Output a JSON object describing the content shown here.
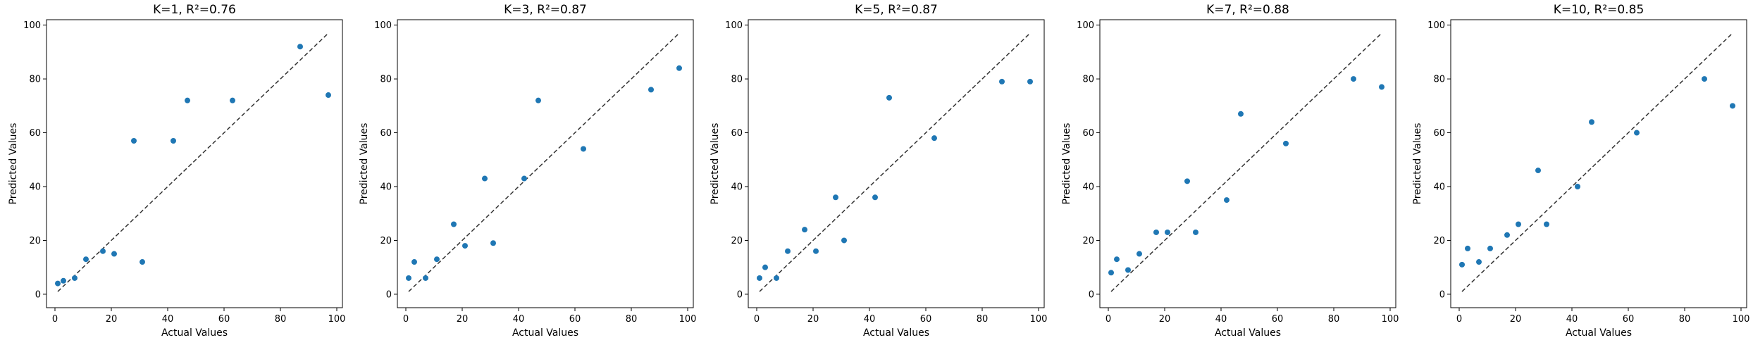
{
  "chart_data": [
    {
      "type": "scatter",
      "title": "K=1, R²=0.76",
      "xlabel": "Actual Values",
      "ylabel": "Predicted Values",
      "xlim": [
        -3,
        102
      ],
      "ylim": [
        -5,
        102
      ],
      "xticks": [
        "0",
        "20",
        "40",
        "60",
        "80",
        "100"
      ],
      "yticks": [
        "0",
        "20",
        "40",
        "60",
        "80",
        "100"
      ],
      "reference_line": [
        [
          1,
          1
        ],
        [
          97,
          97
        ]
      ],
      "point_color": "#1f77b4",
      "x": [
        1,
        3,
        7,
        11,
        17,
        21,
        28,
        31,
        42,
        47,
        63,
        87,
        97
      ],
      "y": [
        4,
        5,
        6,
        13,
        16,
        15,
        57,
        12,
        57,
        72,
        72,
        92,
        74
      ]
    },
    {
      "type": "scatter",
      "title": "K=3, R²=0.87",
      "xlabel": "Actual Values",
      "ylabel": "Predicted Values",
      "xlim": [
        -3,
        102
      ],
      "ylim": [
        -5,
        102
      ],
      "xticks": [
        "0",
        "20",
        "40",
        "60",
        "80",
        "100"
      ],
      "yticks": [
        "0",
        "20",
        "40",
        "60",
        "80",
        "100"
      ],
      "reference_line": [
        [
          1,
          1
        ],
        [
          97,
          97
        ]
      ],
      "point_color": "#1f77b4",
      "x": [
        1,
        3,
        7,
        11,
        17,
        21,
        28,
        31,
        42,
        47,
        63,
        87,
        97
      ],
      "y": [
        6,
        12,
        6,
        13,
        26,
        18,
        43,
        19,
        43,
        72,
        54,
        76,
        84
      ]
    },
    {
      "type": "scatter",
      "title": "K=5, R²=0.87",
      "xlabel": "Actual Values",
      "ylabel": "Predicted Values",
      "xlim": [
        -3,
        102
      ],
      "ylim": [
        -5,
        102
      ],
      "xticks": [
        "0",
        "20",
        "40",
        "60",
        "80",
        "100"
      ],
      "yticks": [
        "0",
        "20",
        "40",
        "60",
        "80",
        "100"
      ],
      "reference_line": [
        [
          1,
          1
        ],
        [
          97,
          97
        ]
      ],
      "point_color": "#1f77b4",
      "x": [
        1,
        3,
        7,
        11,
        17,
        21,
        28,
        31,
        42,
        47,
        63,
        87,
        97
      ],
      "y": [
        6,
        10,
        6,
        16,
        24,
        16,
        36,
        20,
        36,
        73,
        58,
        79,
        79
      ]
    },
    {
      "type": "scatter",
      "title": "K=7, R²=0.88",
      "xlabel": "Actual Values",
      "ylabel": "Predicted Values",
      "xlim": [
        -3,
        102
      ],
      "ylim": [
        -5,
        102
      ],
      "xticks": [
        "0",
        "20",
        "40",
        "60",
        "80",
        "100"
      ],
      "yticks": [
        "0",
        "20",
        "40",
        "60",
        "80",
        "100"
      ],
      "reference_line": [
        [
          1,
          1
        ],
        [
          97,
          97
        ]
      ],
      "point_color": "#1f77b4",
      "x": [
        1,
        3,
        7,
        11,
        17,
        21,
        28,
        31,
        42,
        47,
        63,
        87,
        97
      ],
      "y": [
        8,
        13,
        9,
        15,
        23,
        23,
        42,
        23,
        35,
        67,
        56,
        80,
        77
      ]
    },
    {
      "type": "scatter",
      "title": "K=10, R²=0.85",
      "xlabel": "Actual Values",
      "ylabel": "Predicted Values",
      "xlim": [
        -3,
        102
      ],
      "ylim": [
        -5,
        102
      ],
      "xticks": [
        "0",
        "20",
        "40",
        "60",
        "80",
        "100"
      ],
      "yticks": [
        "0",
        "20",
        "40",
        "60",
        "80",
        "100"
      ],
      "reference_line": [
        [
          1,
          1
        ],
        [
          97,
          97
        ]
      ],
      "point_color": "#1f77b4",
      "x": [
        1,
        3,
        7,
        11,
        17,
        21,
        28,
        31,
        42,
        47,
        63,
        87,
        97
      ],
      "y": [
        11,
        17,
        12,
        17,
        22,
        26,
        46,
        26,
        40,
        64,
        60,
        80,
        70
      ]
    }
  ]
}
